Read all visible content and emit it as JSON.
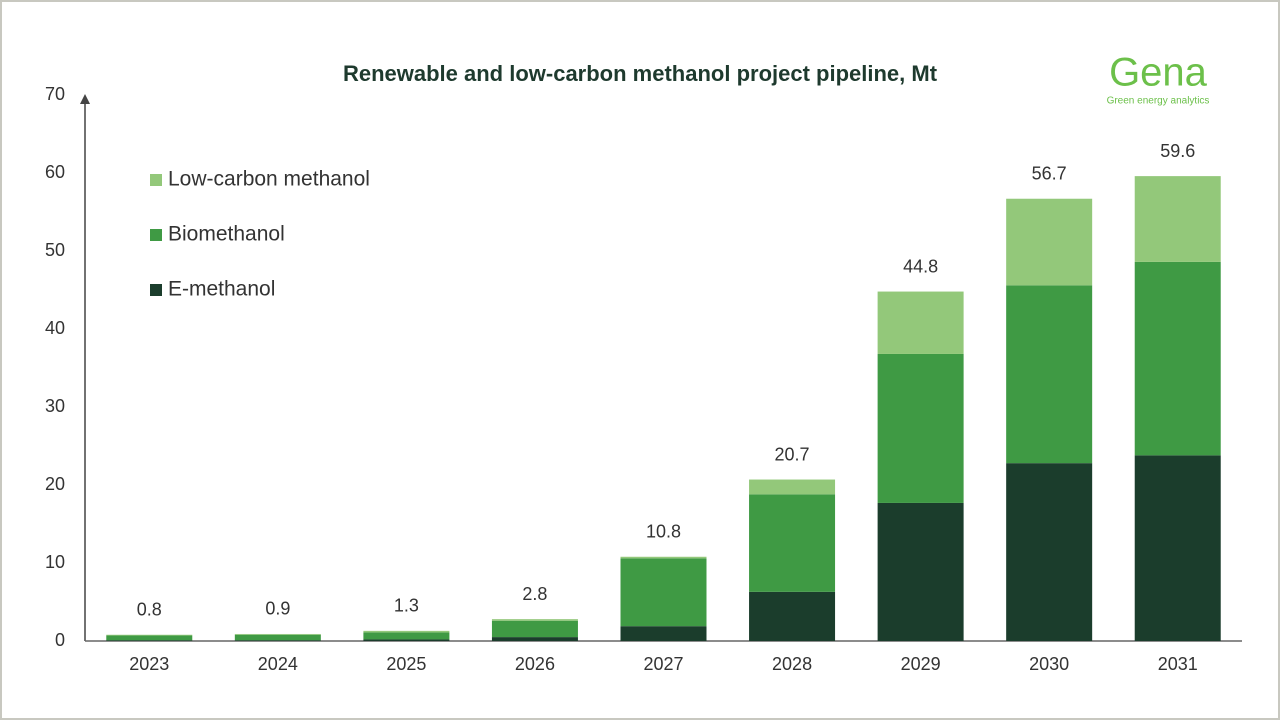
{
  "chart_data": {
    "type": "stacked_bar",
    "title": "Renewable and low-carbon methanol project pipeline, Mt",
    "logo": {
      "name": "Gena",
      "tagline": "Green energy analytics"
    },
    "categories": [
      "2023",
      "2024",
      "2025",
      "2026",
      "2027",
      "2028",
      "2029",
      "2030",
      "2031"
    ],
    "series": [
      {
        "name": "E-methanol",
        "color": "#1b3d2c",
        "values": [
          0.1,
          0.1,
          0.2,
          0.5,
          1.9,
          6.3,
          17.7,
          22.8,
          23.8
        ]
      },
      {
        "name": "Biomethanol",
        "color": "#3f9a44",
        "values": [
          0.6,
          0.7,
          0.9,
          2.1,
          8.7,
          12.5,
          19.1,
          22.8,
          24.8
        ]
      },
      {
        "name": "Low-carbon methanol",
        "color": "#93c87a",
        "values": [
          0.1,
          0.1,
          0.2,
          0.2,
          0.2,
          1.9,
          8.0,
          11.1,
          11.0
        ]
      }
    ],
    "totals": [
      0.8,
      0.9,
      1.3,
      2.8,
      10.8,
      20.7,
      44.8,
      56.7,
      59.6
    ],
    "ylim": [
      0,
      70
    ],
    "yticks": [
      0,
      10,
      20,
      30,
      40,
      50,
      60,
      70
    ],
    "grid": false
  }
}
